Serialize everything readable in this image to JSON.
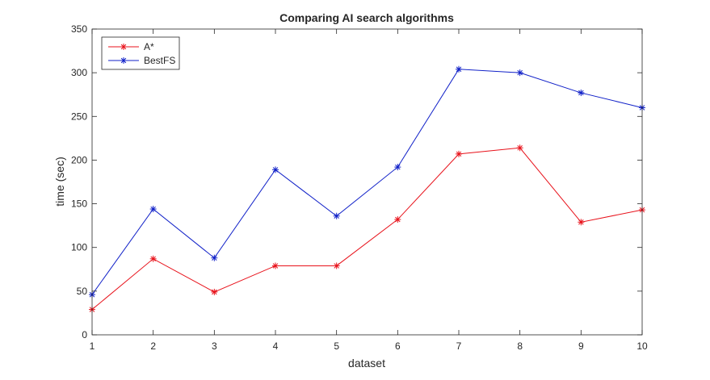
{
  "chart_data": {
    "type": "line",
    "title": "Comparing AI search algorithms",
    "xlabel": "dataset",
    "ylabel": "time (sec)",
    "x": [
      1,
      2,
      3,
      4,
      5,
      6,
      7,
      8,
      9,
      10
    ],
    "xlim": [
      1,
      10
    ],
    "ylim": [
      0,
      350
    ],
    "xticks": [
      1,
      2,
      3,
      4,
      5,
      6,
      7,
      8,
      9,
      10
    ],
    "yticks": [
      0,
      50,
      100,
      150,
      200,
      250,
      300,
      350
    ],
    "grid": false,
    "legend_position": "top-left",
    "marker": "asterisk",
    "series": [
      {
        "name": "A*",
        "color": "#e8121b",
        "values": [
          29,
          87,
          49,
          79,
          79,
          132,
          207,
          214,
          129,
          143
        ]
      },
      {
        "name": "BestFS",
        "color": "#1020c8",
        "values": [
          46,
          144,
          88,
          189,
          136,
          192,
          304,
          300,
          277,
          260
        ]
      }
    ]
  }
}
